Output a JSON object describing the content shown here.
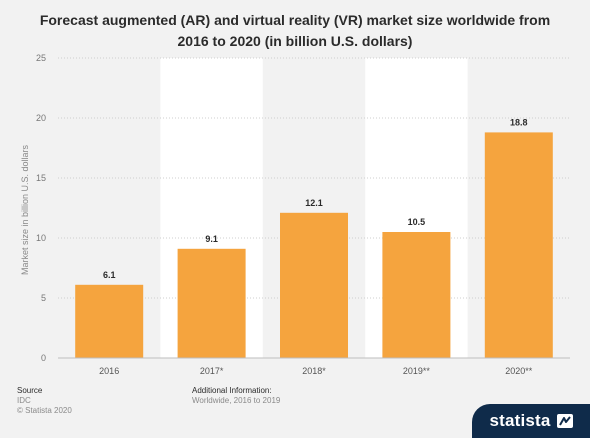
{
  "chart_data": {
    "type": "bar",
    "title_line1": "Forecast augmented (AR) and virtual reality (VR) market size worldwide from",
    "title_line2": "2016 to 2020 (in billion U.S. dollars)",
    "ylabel": "Market size in billion U.S. dollars",
    "xlabel": "",
    "categories": [
      "2016",
      "2017*",
      "2018*",
      "2019**",
      "2020**"
    ],
    "values": [
      6.1,
      9.1,
      12.1,
      10.5,
      18.8
    ],
    "data_labels": [
      "6.1",
      "9.1",
      "12.1",
      "10.5",
      "18.8"
    ],
    "yticks": [
      "0",
      "5",
      "10",
      "15",
      "20",
      "25"
    ],
    "ylim": [
      0,
      25
    ],
    "grid": true,
    "legend": "none",
    "bar_color": "#f5a43e",
    "band_color": "#ffffff"
  },
  "footer": {
    "source_heading": "Source",
    "source_lines": [
      "IDC",
      "© Statista 2020"
    ],
    "info_heading": "Additional Information:",
    "info_lines": [
      "Worldwide, 2016 to 2019"
    ]
  },
  "brand": {
    "name": "statista",
    "icon": "statista-logo-icon"
  }
}
